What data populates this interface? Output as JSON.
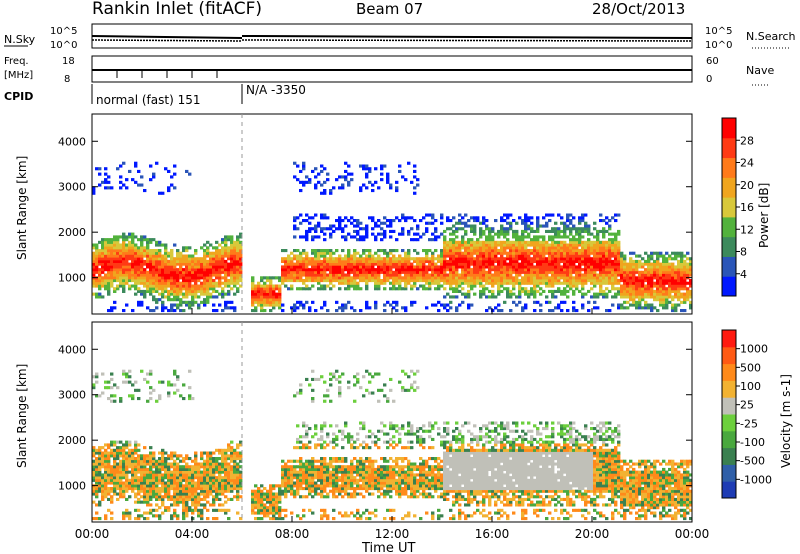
{
  "header": {
    "title": "Rankin Inlet (fitACF)",
    "beam": "Beam 07",
    "date": "28/Oct/2013"
  },
  "top_panel": {
    "nsky_label": "N.Sky",
    "nsearch_label": "N.Search",
    "freq_label": "Freq.",
    "freq_unit": "[MHz]",
    "nave_label": "Nave",
    "cpid_label": "CPID",
    "nsky_ticks": [
      "10^5",
      "10^0"
    ],
    "nsearch_ticks": [
      "10^5",
      "10^0"
    ],
    "freq_ticks": [
      "18",
      "8"
    ],
    "nave_ticks": [
      "60",
      "0"
    ],
    "cpid_segments": [
      {
        "text": "normal (fast) 151",
        "start_h": 0.0,
        "end_h": 6.0
      },
      {
        "text": "N/A -3350",
        "start_h": 6.0,
        "end_h": 24.0
      }
    ]
  },
  "chart_data": [
    {
      "type": "heatmap",
      "title": "Power",
      "xlabel": "Time UT",
      "ylabel": "Slant Range [km]",
      "xlim": [
        0,
        24
      ],
      "ylim": [
        200,
        4600
      ],
      "x_ticks": [
        "00:00",
        "04:00",
        "08:00",
        "12:00",
        "16:00",
        "20:00",
        "00:00"
      ],
      "y_ticks": [
        "1000",
        "2000",
        "3000",
        "4000"
      ],
      "colorbar": {
        "label": "Power [dB]",
        "ticks": [
          "4",
          "8",
          "12",
          "16",
          "20",
          "24",
          "28"
        ],
        "colors": [
          "#0018ff",
          "#2a55b8",
          "#3c8a5c",
          "#52b23c",
          "#d8c83a",
          "#f0a51e",
          "#ff7a1a",
          "#ff3a14",
          "#ff0000"
        ]
      }
    },
    {
      "type": "heatmap",
      "title": "Velocity",
      "xlabel": "Time UT",
      "ylabel": "Slant Range [km]",
      "xlim": [
        0,
        24
      ],
      "ylim": [
        200,
        4600
      ],
      "x_ticks": [
        "00:00",
        "04:00",
        "08:00",
        "12:00",
        "16:00",
        "20:00",
        "00:00"
      ],
      "y_ticks": [
        "1000",
        "2000",
        "3000",
        "4000"
      ],
      "colorbar": {
        "label": "Velocity [m s-1]",
        "ticks": [
          "1000",
          "500",
          "100",
          "25",
          "-25",
          "-100",
          "-500",
          "-1000"
        ],
        "colors": [
          "#1e3cb4",
          "#2f5fa8",
          "#3a8050",
          "#49a83e",
          "#6ccf3c",
          "#c0c0b8",
          "#f2b232",
          "#ff8a1a",
          "#ff5a14",
          "#ff1a10"
        ]
      }
    }
  ]
}
